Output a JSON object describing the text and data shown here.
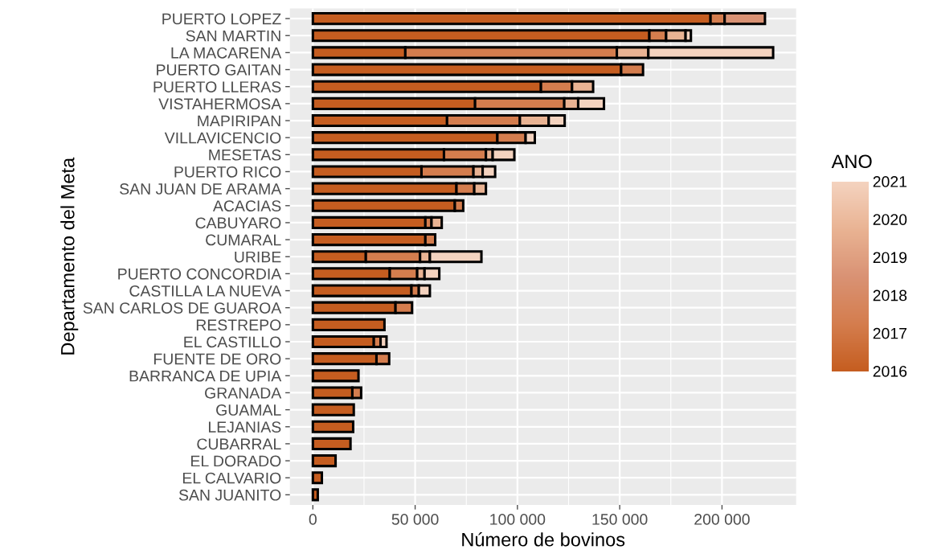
{
  "chart_data": {
    "type": "bar",
    "orientation": "horizontal",
    "stacked": true,
    "xlabel": "Número de bovinos",
    "ylabel": "Departamento del Meta",
    "clabel": "ANO",
    "categories": [
      "PUERTO LOPEZ",
      "SAN MARTIN",
      "LA MACARENA",
      "PUERTO GAITAN",
      "PUERTO LLERAS",
      "VISTAHERMOSA",
      "MAPIRIPAN",
      "VILLAVICENCIO",
      "MESETAS",
      "PUERTO RICO",
      "SAN JUAN DE ARAMA",
      "ACACIAS",
      "CABUYARO",
      "CUMARAL",
      "URIBE",
      "PUERTO CONCORDIA",
      "CASTILLA LA NUEVA",
      "SAN CARLOS DE GUAROA",
      "RESTREPO",
      "EL CASTILLO",
      "FUENTE DE ORO",
      "BARRANCA DE UPIA",
      "GRANADA",
      "GUAMAL",
      "LEJANIAS",
      "CUBARRAL",
      "EL DORADO",
      "EL CALVARIO",
      "SAN JUANITO"
    ],
    "series": [
      {
        "color": "#c55d20",
        "values": [
          194400,
          164500,
          45200,
          150700,
          111500,
          79300,
          65600,
          90200,
          64100,
          53100,
          70200,
          69400,
          55000,
          55000,
          25900,
          37600,
          48200,
          40400,
          35000,
          29800,
          31100,
          22300,
          19300,
          20000,
          19700,
          18400,
          11100,
          4400,
          2400
        ]
      },
      {
        "color": "#d47d4e",
        "values": [
          6900,
          8200,
          103400,
          10700,
          15200,
          43600,
          35600,
          13800,
          20500,
          25400,
          8700,
          4100,
          3000,
          4800,
          26500,
          13400,
          3600,
          8100,
          null,
          3300,
          6200,
          null,
          4300,
          null,
          null,
          null,
          null,
          null,
          null
        ]
      },
      {
        "color": "#d99274",
        "values": [
          19700,
          null,
          null,
          null,
          null,
          null,
          null,
          null,
          null,
          null,
          null,
          null,
          null,
          null,
          null,
          null,
          null,
          null,
          null,
          null,
          null,
          null,
          null,
          null,
          null,
          null,
          null,
          null,
          null
        ]
      },
      {
        "color": "#e9b393",
        "values": [
          null,
          9500,
          15400,
          null,
          10300,
          6800,
          14100,
          null,
          3300,
          4500,
          5700,
          null,
          5000,
          null,
          4800,
          3600,
          null,
          null,
          null,
          null,
          null,
          null,
          null,
          null,
          null,
          null,
          null,
          null,
          null
        ]
      },
      {
        "color": "#f4d3bf",
        "values": [
          null,
          2600,
          61000,
          null,
          null,
          12600,
          7800,
          4500,
          10600,
          6100,
          null,
          null,
          null,
          null,
          25200,
          7200,
          5400,
          null,
          null,
          2900,
          null,
          null,
          null,
          null,
          null,
          null,
          null,
          null,
          null
        ]
      }
    ],
    "xlim": [
      -11250,
      236250
    ],
    "xticks": [
      {
        "value": 0,
        "label": "0"
      },
      {
        "value": 50000,
        "label": "50 000"
      },
      {
        "value": 100000,
        "label": "100 000"
      },
      {
        "value": 150000,
        "label": "150 000"
      },
      {
        "value": 200000,
        "label": "200 000"
      }
    ],
    "clim": [
      2016,
      2021
    ],
    "cticks": [
      2016,
      2017,
      2018,
      2019,
      2020,
      2021
    ],
    "grid": true
  }
}
